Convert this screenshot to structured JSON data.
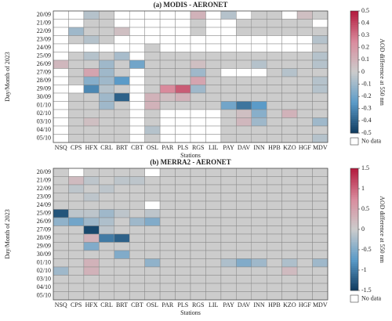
{
  "chart_data": [
    {
      "type": "heatmap",
      "title": "(a) MODIS - AERONET",
      "x_label": "Stations",
      "y_label": "Day/Month of 2023",
      "colorbar_label": "AOD difference at 550 nm",
      "null_label": "No data",
      "colors": [
        "#0f3b5f",
        "#5b9bc8",
        "#cccccc",
        "#d98a9c",
        "#b2173b"
      ],
      "x": [
        "NSQ",
        "CPS",
        "HFX",
        "CRL",
        "BRT",
        "CBT",
        "OSL",
        "PAR",
        "PLS",
        "RGS",
        "LIL",
        "PAY",
        "DAV",
        "INN",
        "HPB",
        "KZO",
        "HGF",
        "MDV"
      ],
      "y": [
        "20/09",
        "21/09",
        "22/09",
        "23/09",
        "24/09",
        "25/09",
        "26/09",
        "27/09",
        "28/09",
        "29/09",
        "30/09",
        "01/10",
        "02/10",
        "03/10",
        "04/10",
        "05/10"
      ],
      "values": [
        [
          null,
          null,
          -0.05,
          0,
          null,
          null,
          null,
          null,
          null,
          0.1,
          null,
          -0.05,
          null,
          0,
          0,
          null,
          0.05,
          0
        ],
        [
          null,
          null,
          0,
          0,
          null,
          null,
          null,
          null,
          null,
          0,
          null,
          null,
          0,
          0,
          0,
          0,
          0,
          null
        ],
        [
          null,
          -0.1,
          0,
          0,
          0.05,
          null,
          null,
          null,
          null,
          0,
          null,
          null,
          0,
          0,
          0,
          0,
          0,
          0
        ],
        [
          null,
          0,
          -0.05,
          0,
          null,
          null,
          null,
          null,
          null,
          null,
          null,
          null,
          null,
          null,
          null,
          null,
          null,
          -0.05
        ],
        [
          null,
          null,
          null,
          null,
          null,
          null,
          0,
          null,
          null,
          null,
          null,
          null,
          null,
          null,
          null,
          null,
          null,
          0
        ],
        [
          null,
          0,
          -0.05,
          0,
          -0.08,
          null,
          0,
          0,
          0,
          0,
          0,
          0,
          0,
          0,
          0,
          0,
          0,
          -0.05
        ],
        [
          0.08,
          0,
          0,
          -0.1,
          0,
          -0.2,
          0,
          0,
          0,
          0.05,
          0,
          0,
          0,
          -0.05,
          0,
          0,
          0,
          -0.05
        ],
        [
          null,
          0,
          0.15,
          -0.1,
          0,
          null,
          0,
          0,
          0,
          -0.1,
          0,
          null,
          null,
          null,
          0,
          -0.05,
          0,
          0
        ],
        [
          null,
          0,
          -0.15,
          -0.1,
          -0.25,
          null,
          0,
          0,
          0,
          0.15,
          0,
          0,
          0,
          0,
          0,
          0,
          0,
          -0.05
        ],
        [
          null,
          null,
          -0.3,
          -0.05,
          0,
          null,
          0,
          0.25,
          0.35,
          -0.1,
          0,
          0,
          0,
          0,
          0,
          0,
          0,
          -0.05
        ],
        [
          null,
          0,
          0,
          -0.1,
          -0.4,
          null,
          0.1,
          0.05,
          0.1,
          0,
          0,
          0,
          0,
          0,
          0,
          0,
          0,
          0
        ],
        [
          null,
          0,
          0,
          -0.1,
          0,
          null,
          0.1,
          0,
          0,
          0,
          0,
          -0.2,
          -0.35,
          -0.25,
          0,
          0,
          0,
          0
        ],
        [
          null,
          0,
          0,
          0,
          0,
          null,
          0,
          null,
          null,
          null,
          null,
          0,
          0.05,
          -0.15,
          0,
          0.1,
          0,
          0
        ],
        [
          null,
          0,
          0.05,
          0,
          0,
          null,
          0,
          null,
          null,
          null,
          null,
          0,
          0.08,
          -0.1,
          0,
          0,
          0,
          -0.1
        ],
        [
          null,
          0,
          0,
          0,
          0,
          null,
          -0.05,
          null,
          null,
          null,
          null,
          0,
          0,
          0,
          0,
          0,
          0,
          0
        ],
        [
          null,
          0,
          0,
          0,
          0,
          null,
          0,
          null,
          null,
          null,
          null,
          0,
          0,
          0,
          0,
          0,
          0,
          -0.05
        ]
      ],
      "zlim": [
        -0.5,
        0.5
      ],
      "zticks": [
        0.5,
        0.4,
        0.3,
        0.2,
        0.1,
        0,
        -0.1,
        -0.2,
        -0.3,
        -0.4,
        -0.5
      ]
    },
    {
      "type": "heatmap",
      "title": "(b) MERRA2 - AERONET",
      "x_label": "Stations",
      "y_label": "Day/Month of 2023",
      "colorbar_label": "AOD difference at 550 nm",
      "null_label": "No data",
      "colors": [
        "#0f3b5f",
        "#5b9bc8",
        "#cccccc",
        "#d98a9c",
        "#b2173b"
      ],
      "x": [
        "NSQ",
        "CPS",
        "HFX",
        "CRL",
        "BRT",
        "CBT",
        "OSL",
        "PAR",
        "PLS",
        "RGS",
        "LIL",
        "PAY",
        "DAV",
        "INN",
        "HPB",
        "KZO",
        "HGF",
        "MDV"
      ],
      "y": [
        "20/09",
        "21/09",
        "22/09",
        "23/09",
        "24/09",
        "25/09",
        "26/09",
        "27/09",
        "28/09",
        "29/09",
        "30/09",
        "01/10",
        "02/10",
        "03/10",
        "04/10",
        "05/10"
      ],
      "values": [
        [
          0,
          null,
          0,
          0,
          0,
          0,
          null,
          0,
          0,
          0,
          0,
          0,
          0,
          0,
          0,
          0,
          0,
          0
        ],
        [
          0,
          0.2,
          -0.1,
          0,
          -0.1,
          -0.1,
          0,
          0,
          0,
          0,
          0,
          0,
          0,
          0,
          0,
          0,
          0,
          0
        ],
        [
          0,
          -0.1,
          0,
          -0.1,
          0,
          0,
          0,
          0,
          0,
          0,
          0,
          0,
          0,
          0,
          0,
          0,
          0,
          0
        ],
        [
          0,
          0,
          -0.1,
          0,
          0,
          0,
          0,
          0,
          0,
          0,
          0,
          0,
          0,
          0,
          0,
          0,
          0,
          0
        ],
        [
          0,
          0,
          0,
          0,
          0,
          0,
          null,
          0,
          0,
          0,
          0,
          0,
          0,
          0,
          0,
          0,
          0,
          0
        ],
        [
          -1.3,
          -0.1,
          -0.1,
          -0.3,
          -0.1,
          0,
          -0.1,
          0,
          0,
          0,
          0,
          0,
          0,
          0,
          0,
          0,
          0,
          0
        ],
        [
          -0.4,
          -0.6,
          -0.3,
          -0.2,
          0,
          -0.3,
          -0.5,
          0,
          0,
          0,
          0,
          0,
          0,
          0,
          0,
          0,
          0,
          0
        ],
        [
          0,
          0,
          -1.4,
          -0.1,
          0,
          0,
          0,
          0,
          0,
          0,
          0,
          0,
          0,
          0,
          0,
          0,
          0,
          0
        ],
        [
          0,
          0,
          0.3,
          -1.0,
          -1.2,
          0,
          0,
          0,
          0,
          0,
          0,
          0,
          0,
          0,
          0,
          0,
          0,
          0
        ],
        [
          0,
          0,
          -0.5,
          0,
          0,
          0,
          0,
          0,
          0,
          0,
          0,
          0,
          0,
          0,
          0,
          0,
          0,
          0
        ],
        [
          0,
          0,
          0,
          0,
          -0.5,
          0,
          0,
          0,
          0,
          0,
          0,
          0,
          0,
          0,
          0,
          0,
          0,
          0
        ],
        [
          0,
          0,
          0.3,
          0,
          0,
          0,
          -0.4,
          0,
          0,
          0,
          0,
          -0.2,
          -0.5,
          -0.3,
          0,
          -0.2,
          0,
          -0.3
        ],
        [
          -0.3,
          0,
          0.3,
          0,
          0,
          0,
          0,
          0,
          0,
          0,
          0,
          0,
          0,
          0,
          0,
          0.2,
          0,
          0
        ],
        [
          0,
          0,
          0,
          0,
          0,
          0,
          0,
          0,
          0,
          0,
          0,
          0,
          0,
          0,
          0,
          0,
          0,
          0
        ],
        [
          0,
          0,
          0,
          0,
          0,
          0,
          0,
          0,
          0,
          0,
          0,
          0,
          0,
          0,
          0,
          0,
          0,
          0
        ],
        [
          0,
          0,
          0,
          0,
          0,
          0,
          0,
          0,
          0,
          0,
          0,
          0,
          0,
          0,
          0,
          0,
          0,
          0
        ]
      ],
      "zlim": [
        -1.5,
        1.5
      ],
      "zticks": [
        1.5,
        1,
        0.5,
        0,
        -0.5,
        -1,
        -1.5
      ]
    }
  ]
}
